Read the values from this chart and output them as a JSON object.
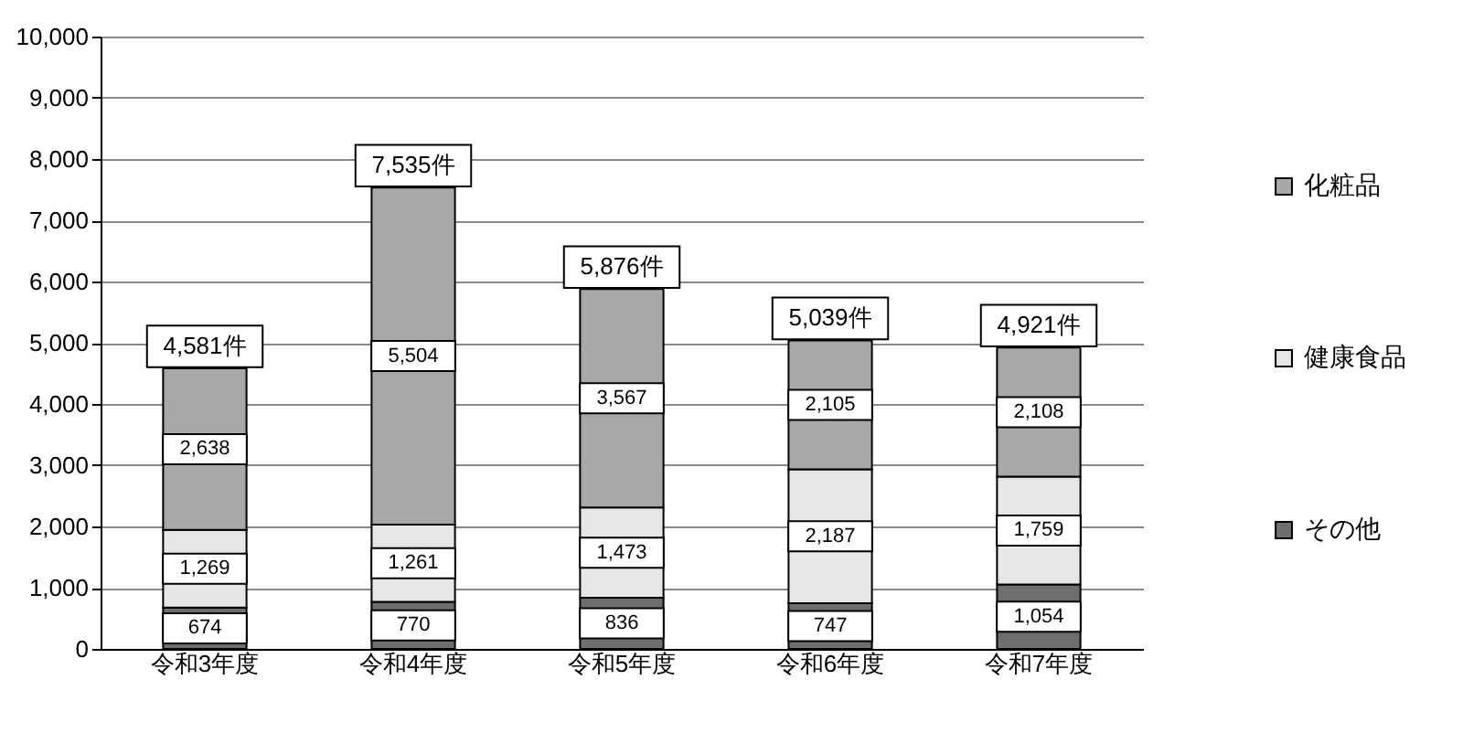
{
  "chart_data": {
    "type": "bar",
    "stacked": true,
    "categories": [
      "令和3年度",
      "令和4年度",
      "令和5年度",
      "令和6年度",
      "令和7年度"
    ],
    "series": [
      {
        "name": "その他",
        "color": "#6e6e6e",
        "values": [
          674,
          770,
          836,
          747,
          1054
        ],
        "value_labels": [
          "674",
          "770",
          "836",
          "747",
          "1,054"
        ]
      },
      {
        "name": "健康食品",
        "color": "#e6e6e6",
        "values": [
          1269,
          1261,
          1473,
          2187,
          1759
        ],
        "value_labels": [
          "1,269",
          "1,261",
          "1,473",
          "2,187",
          "1,759"
        ]
      },
      {
        "name": "化粧品",
        "color": "#a8a8a8",
        "values": [
          2638,
          5504,
          3567,
          2105,
          2108
        ],
        "value_labels": [
          "2,638",
          "5,504",
          "3,567",
          "2,105",
          "2,108"
        ]
      }
    ],
    "totals": [
      "4,581件",
      "7,535件",
      "5,876件",
      "5,039件",
      "4,921件"
    ],
    "ylim": [
      0,
      10000
    ],
    "yticks": [
      0,
      {
        "value": 1000,
        "label": "1,000"
      },
      {
        "value": 2000,
        "label": "2,000"
      },
      {
        "value": 3000,
        "label": "3,000"
      },
      {
        "value": 4000,
        "label": "4,000"
      },
      {
        "value": 5000,
        "label": "5,000"
      },
      {
        "value": 6000,
        "label": "6,000"
      },
      {
        "value": 7000,
        "label": "7,000"
      },
      {
        "value": 8000,
        "label": "8,000"
      },
      {
        "value": 9000,
        "label": "9,000"
      },
      {
        "value": 10000,
        "label": "10,000"
      }
    ],
    "grid": "y",
    "legend": "right"
  }
}
